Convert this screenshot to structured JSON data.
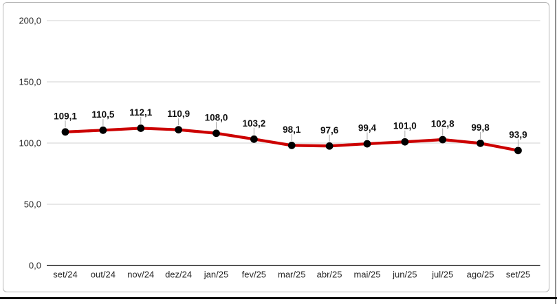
{
  "page": {
    "background_color": "#ffffff",
    "frame_border_color": "#b5b5b5",
    "right_edge_color": "#8f8f8f",
    "bottom_divider_color": "#0b0b0b"
  },
  "chart_data": {
    "type": "line",
    "title": "",
    "xlabel": "",
    "ylabel": "",
    "legend": "none",
    "grid": true,
    "ylim": [
      0,
      200
    ],
    "categories": [
      "set/24",
      "out/24",
      "nov/24",
      "dez/24",
      "jan/25",
      "fev/25",
      "mar/25",
      "abr/25",
      "mai/25",
      "jun/25",
      "jul/25",
      "ago/25",
      "set/25"
    ],
    "series": [
      {
        "name": "monthly-index",
        "values": [
          109.1,
          110.5,
          112.1,
          110.9,
          108.0,
          103.2,
          98.1,
          97.6,
          99.4,
          101.0,
          102.8,
          99.8,
          93.9
        ],
        "value_labels": [
          "109,1",
          "110,5",
          "112,1",
          "110,9",
          "108,0",
          "103,2",
          "98,1",
          "97,6",
          "99,4",
          "101,0",
          "102,8",
          "99,8",
          "93,9"
        ],
        "line_color": "#cc0000",
        "marker_color": "#000000"
      }
    ],
    "y_ticks": {
      "values": [
        0,
        50,
        100,
        150,
        200
      ],
      "labels": [
        "0,0",
        "50,0",
        "100,0",
        "150,0",
        "200,0"
      ]
    },
    "style": {
      "gridline_color": "#d9d9d9",
      "axis_line_color": "#555555",
      "tick_label_color": "#262626",
      "data_label_color": "#111111",
      "leader_line_color": "#a6a6a6"
    }
  }
}
